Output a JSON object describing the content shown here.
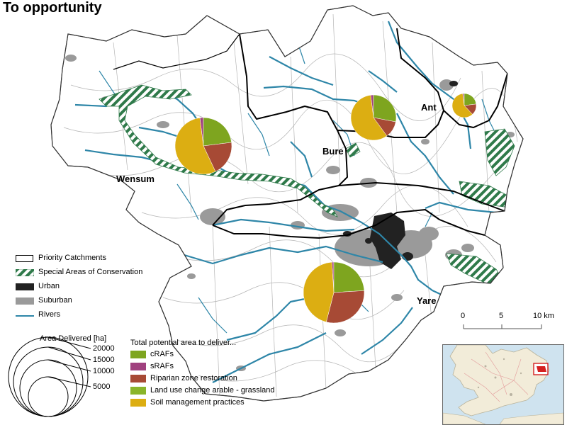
{
  "title": "To opportunity",
  "catchments": [
    {
      "name": "Wensum",
      "pie": {
        "soil": 55,
        "land_use": 0,
        "riparian": 20,
        "srafs": 2,
        "crafs": 23
      }
    },
    {
      "name": "Bure",
      "pie": {
        "soil": 58,
        "land_use": 0,
        "riparian": 12,
        "srafs": 2,
        "crafs": 28
      }
    },
    {
      "name": "Ant",
      "pie": {
        "soil": 60,
        "land_use": 0,
        "riparian": 15,
        "srafs": 2,
        "crafs": 23
      }
    },
    {
      "name": "Yare",
      "pie": {
        "soil": 45,
        "land_use": 0,
        "riparian": 30,
        "srafs": 1,
        "crafs": 24
      }
    }
  ],
  "legend": {
    "priority_catchments": "Priority Catchments",
    "special_areas": "Special Areas of Conservation",
    "urban": "Urban",
    "suburban": "Suburban",
    "rivers": "Rivers"
  },
  "size_legend": {
    "title": "Area Delivered [ha]",
    "values": [
      "20000",
      "15000",
      "10000",
      "5000"
    ]
  },
  "pie_legend": {
    "heading": "Total potential area to deliver...",
    "items": [
      {
        "label": "cRAFs",
        "color": "#7ea51f"
      },
      {
        "label": "sRAFs",
        "color": "#a0417f"
      },
      {
        "label": "Riparian zone restoration",
        "color": "#a74a35"
      },
      {
        "label": "Land use change arable - grassland",
        "color": "#8ab52a"
      },
      {
        "label": "Soil management practices",
        "color": "#dcae12"
      }
    ]
  },
  "scale": {
    "labels": [
      "0",
      "5",
      "10 km"
    ]
  },
  "colors": {
    "river": "#2e86a8",
    "urban": "#222222",
    "suburban": "#9a9a9a",
    "sac_green": "#2f7a4a",
    "boundary": "#000000",
    "crafs": "#7ea51f",
    "srafs": "#a0417f",
    "riparian": "#a74a35",
    "soil": "#dcae12",
    "land_use": "#8ab52a"
  }
}
